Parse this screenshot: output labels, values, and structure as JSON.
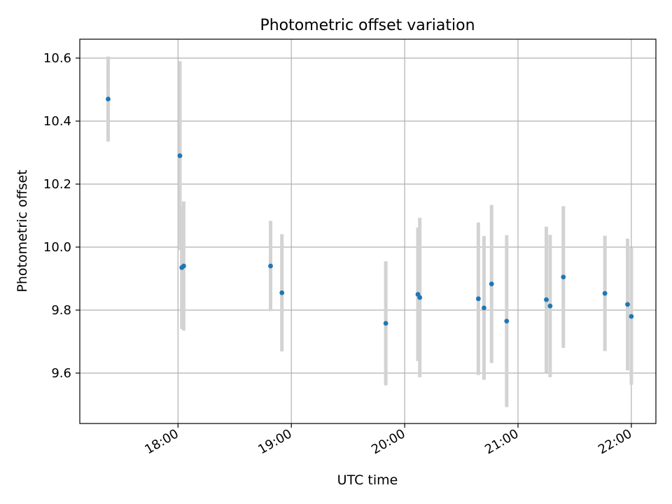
{
  "chart_data": {
    "type": "scatter",
    "title": "Photometric offset variation",
    "xlabel": "UTC time",
    "ylabel": "Photometric offset",
    "x_axis_type": "time",
    "xlim": [
      "17:08",
      "22:13"
    ],
    "ylim": [
      9.44,
      10.66
    ],
    "x_ticks": [
      "18:00",
      "19:00",
      "20:00",
      "21:00",
      "22:00"
    ],
    "y_ticks": [
      9.6,
      9.8,
      10.0,
      10.2,
      10.4,
      10.6
    ],
    "y_tick_labels": [
      "9.6",
      "9.8",
      "10.0",
      "10.2",
      "10.4",
      "10.6"
    ],
    "grid": true,
    "colors": {
      "point": "#1f77b4",
      "errorbar": "#d3d3d3",
      "grid": "#b0b0b0"
    },
    "points": [
      {
        "time": "17:23",
        "y": 10.47,
        "err": 0.135
      },
      {
        "time": "18:01",
        "y": 10.29,
        "err": 0.3
      },
      {
        "time": "18:02",
        "y": 9.935,
        "err": 0.195
      },
      {
        "time": "18:03",
        "y": 9.94,
        "err": 0.205
      },
      {
        "time": "18:49",
        "y": 9.94,
        "err": 0.143
      },
      {
        "time": "18:55",
        "y": 9.855,
        "err": 0.186
      },
      {
        "time": "19:50",
        "y": 9.758,
        "err": 0.197
      },
      {
        "time": "20:07",
        "y": 9.85,
        "err": 0.212
      },
      {
        "time": "20:08",
        "y": 9.84,
        "err": 0.253
      },
      {
        "time": "20:39",
        "y": 9.836,
        "err": 0.242
      },
      {
        "time": "20:42",
        "y": 9.807,
        "err": 0.228
      },
      {
        "time": "20:46",
        "y": 9.883,
        "err": 0.251
      },
      {
        "time": "20:54",
        "y": 9.765,
        "err": 0.273
      },
      {
        "time": "21:15",
        "y": 9.833,
        "err": 0.232
      },
      {
        "time": "21:17",
        "y": 9.813,
        "err": 0.226
      },
      {
        "time": "21:24",
        "y": 9.905,
        "err": 0.225
      },
      {
        "time": "21:46",
        "y": 9.853,
        "err": 0.183
      },
      {
        "time": "21:58",
        "y": 9.818,
        "err": 0.209
      },
      {
        "time": "22:00",
        "y": 9.78,
        "err": 0.217
      }
    ]
  }
}
